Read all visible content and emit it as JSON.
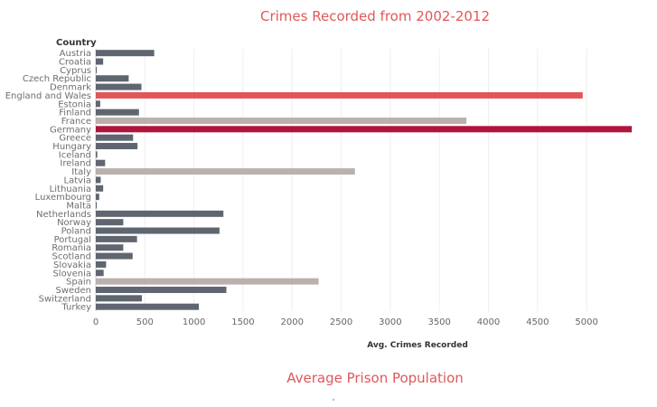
{
  "chart_data": {
    "type": "bar",
    "orientation": "horizontal",
    "title": "Crimes Recorded from 2002-2012",
    "category_header": "Country",
    "xlabel": "Avg. Crimes Recorded",
    "xlim": [
      0,
      5450
    ],
    "xticks": [
      0,
      500,
      1000,
      1500,
      2000,
      2500,
      3000,
      3500,
      4000,
      4500,
      5000
    ],
    "grid": true,
    "categories": [
      "Austria",
      "Croatia",
      "Cyprus",
      "Czech Republic",
      "Denmark",
      "England and Wales",
      "Estonia",
      "Finland",
      "France",
      "Germany",
      "Greece",
      "Hungary",
      "Iceland",
      "Ireland",
      "Italy",
      "Latvia",
      "Lithuania",
      "Luxembourg",
      "Malta",
      "Netherlands",
      "Norway",
      "Poland",
      "Portugal",
      "Romania",
      "Scotland",
      "Slovakia",
      "Slovenia",
      "Spain",
      "Sweden",
      "Switzerland",
      "Turkey"
    ],
    "values": [
      595,
      75,
      10,
      335,
      465,
      4960,
      45,
      440,
      3775,
      5460,
      380,
      425,
      15,
      95,
      2640,
      50,
      75,
      35,
      10,
      1300,
      280,
      1260,
      420,
      280,
      375,
      105,
      80,
      2270,
      1330,
      470,
      1050
    ],
    "colors": [
      "#5f6670",
      "#5f6670",
      "#5f6670",
      "#5f6670",
      "#5f6670",
      "#e15759",
      "#5f6670",
      "#5f6670",
      "#bab0ac",
      "#b0143c",
      "#5f6670",
      "#5f6670",
      "#5f6670",
      "#5f6670",
      "#bab0ac",
      "#5f6670",
      "#5f6670",
      "#5f6670",
      "#5f6670",
      "#5f6670",
      "#5f6670",
      "#5f6670",
      "#5f6670",
      "#5f6670",
      "#5f6670",
      "#5f6670",
      "#5f6670",
      "#bab0ac",
      "#5f6670",
      "#5f6670",
      "#5f6670"
    ]
  },
  "next_section": {
    "title": "Average Prison Population"
  }
}
